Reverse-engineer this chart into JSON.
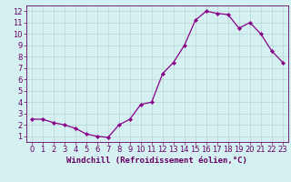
{
  "x": [
    0,
    1,
    2,
    3,
    4,
    5,
    6,
    7,
    8,
    9,
    10,
    11,
    12,
    13,
    14,
    15,
    16,
    17,
    18,
    19,
    20,
    21,
    22,
    23
  ],
  "y": [
    2.5,
    2.5,
    2.2,
    2.0,
    1.7,
    1.2,
    1.0,
    0.9,
    2.0,
    2.5,
    3.8,
    4.0,
    6.5,
    7.5,
    9.0,
    11.2,
    12.0,
    11.8,
    11.7,
    10.5,
    11.0,
    10.0,
    8.5,
    7.5
  ],
  "line_color": "#880088",
  "marker": "D",
  "marker_size": 2.2,
  "bg_color": "#d5f0f0",
  "grid_color": "#b8d4d4",
  "xlabel": "Windchill (Refroidissement éolien,°C)",
  "ylabel": "",
  "xlim": [
    -0.5,
    23.5
  ],
  "ylim": [
    0.5,
    12.5
  ],
  "yticks": [
    1,
    2,
    3,
    4,
    5,
    6,
    7,
    8,
    9,
    10,
    11,
    12
  ],
  "xticks": [
    0,
    1,
    2,
    3,
    4,
    5,
    6,
    7,
    8,
    9,
    10,
    11,
    12,
    13,
    14,
    15,
    16,
    17,
    18,
    19,
    20,
    21,
    22,
    23
  ],
  "tick_color": "#660066",
  "label_fontsize": 6.5,
  "tick_fontsize": 6.0
}
